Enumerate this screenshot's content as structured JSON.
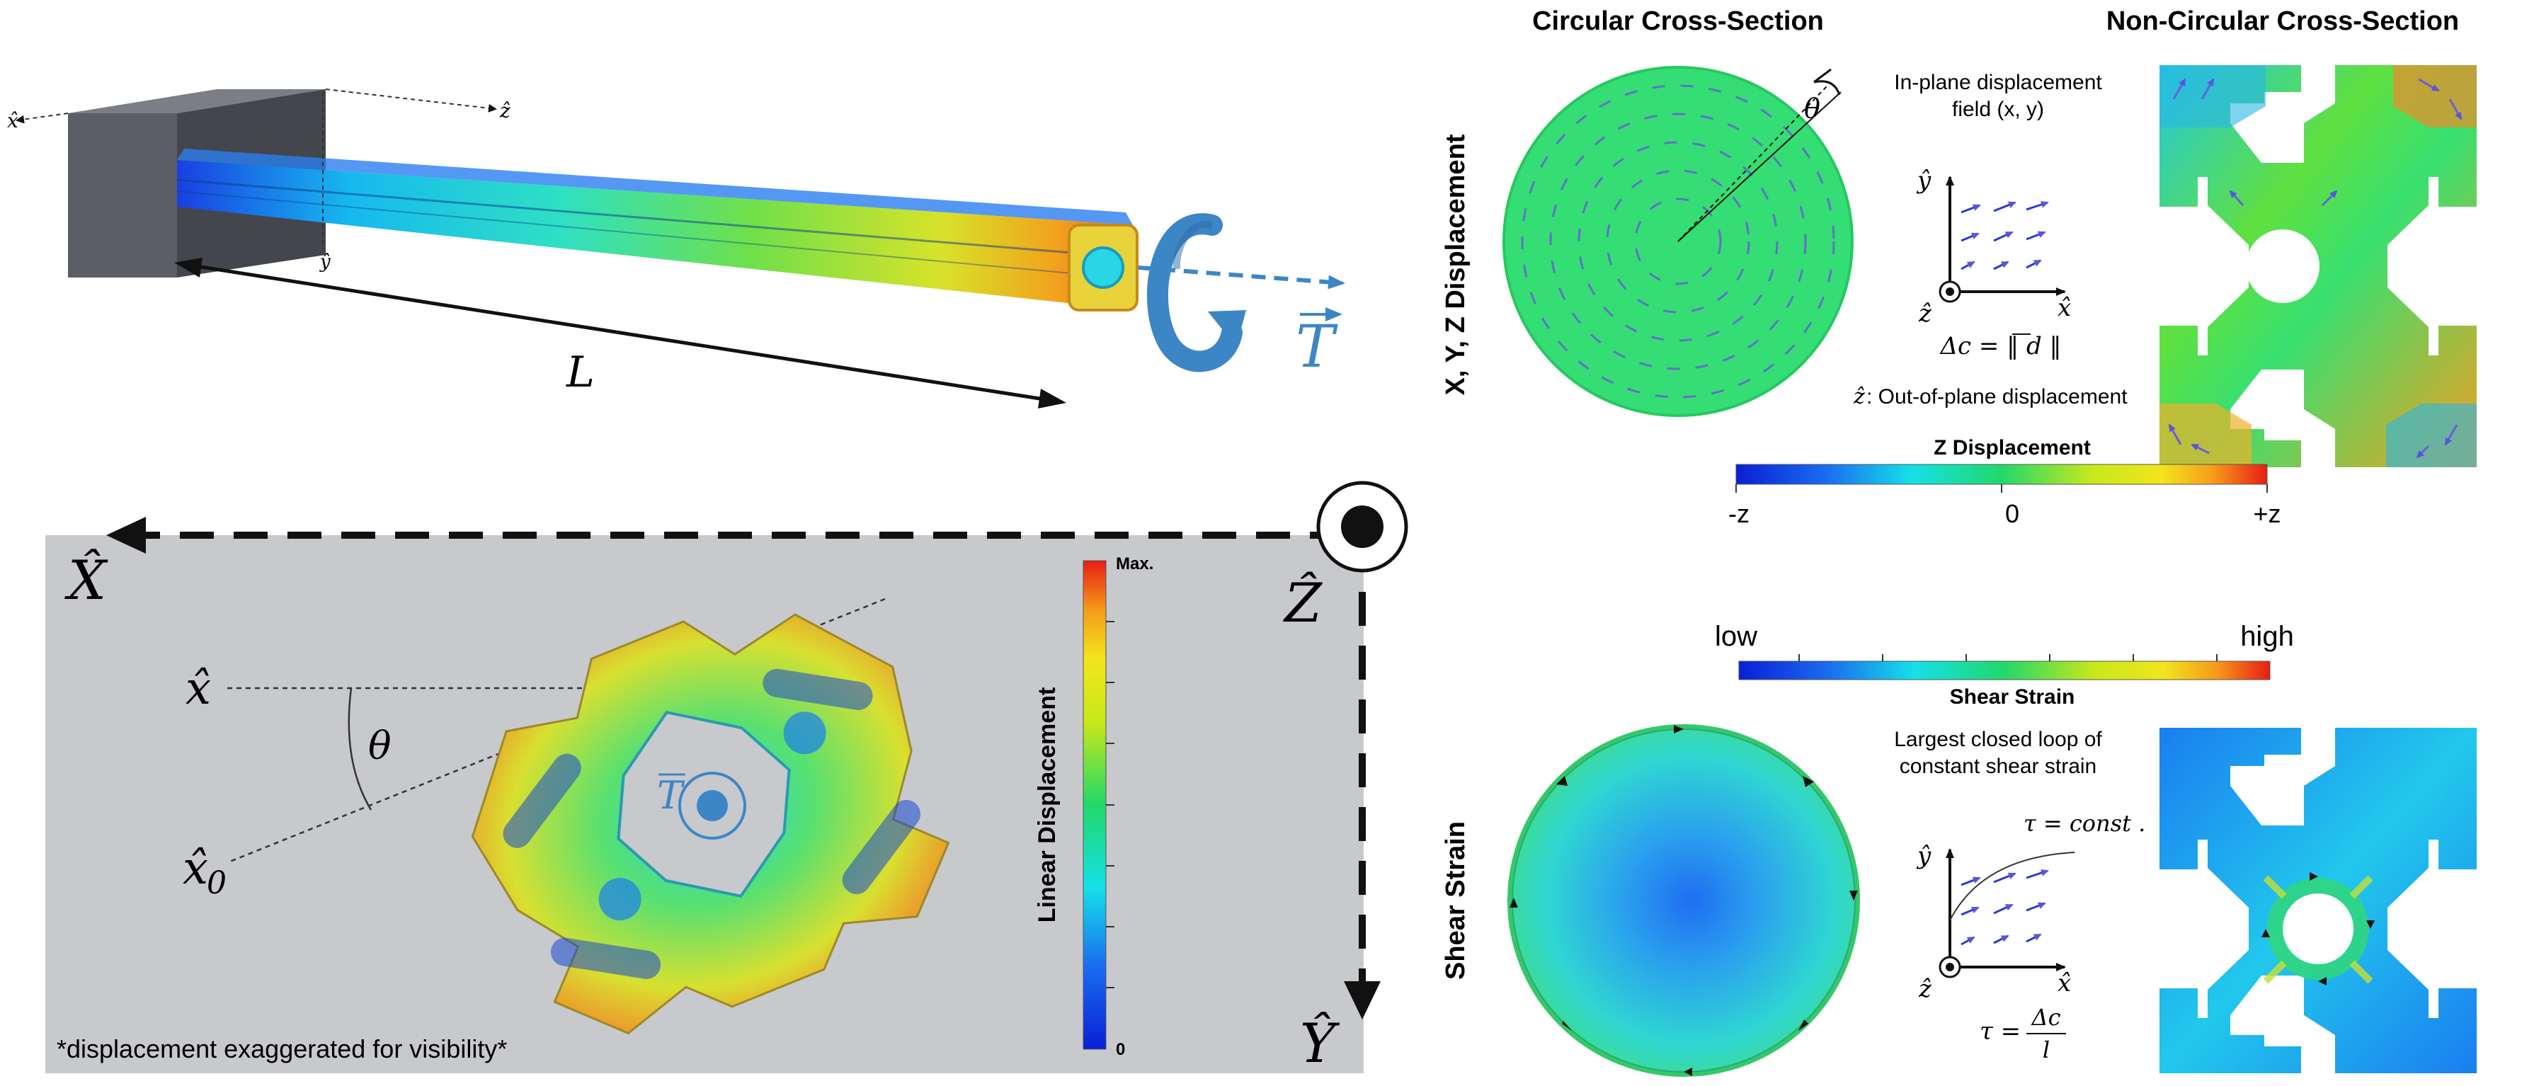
{
  "beam_panel": {
    "axis_x": "x̂",
    "axis_z": "ẑ",
    "axis_y": "ŷ",
    "length_label": "L",
    "torque_label": "T"
  },
  "rotation_panel": {
    "big_axis_x": "X̂",
    "big_axis_z": "Ẑ",
    "big_axis_y": "Ŷ",
    "small_x": "x̂",
    "small_x0": "x̂",
    "small_x0_sub": "0",
    "theta": "θ",
    "torque_label": "T",
    "colorbar_max": "Max.",
    "colorbar_min": "0",
    "colorbar_title": "Linear Displacement",
    "footnote": "*displacement exaggerated for visibility*"
  },
  "right_panel": {
    "col_title_circular": "Circular Cross-Section",
    "col_title_noncircular": "Non-Circular Cross-Section",
    "row_label_displacement": "X, Y, Z Displacement",
    "row_label_shear": "Shear Strain",
    "theta": "θ",
    "inplane_line1": "In-plane displacement",
    "inplane_line2": "field (x, y)",
    "axis_y": "ŷ",
    "axis_x": "x̂",
    "axis_z": "ẑ",
    "delta_formula": "Δc = ‖ d ‖",
    "z_note_sym": "ẑ",
    "z_note_text": " : Out-of-plane displacement",
    "zdisp_title": "Z Displacement",
    "zdisp_min": "-z",
    "zdisp_mid": "0",
    "zdisp_max": "+z",
    "shear_low": "low",
    "shear_high": "high",
    "shear_title": "Shear Strain",
    "loop_line1": "Largest closed loop of",
    "loop_line2": "constant shear strain",
    "tau_const": "τ = const .",
    "tau_lhs": "τ =",
    "tau_num": "Δc",
    "tau_den": "l"
  },
  "colors": {
    "gray_panel": "#c8c9cd",
    "torque_blue": "#3d86c6",
    "arrow_purple": "#6b5fd6"
  }
}
